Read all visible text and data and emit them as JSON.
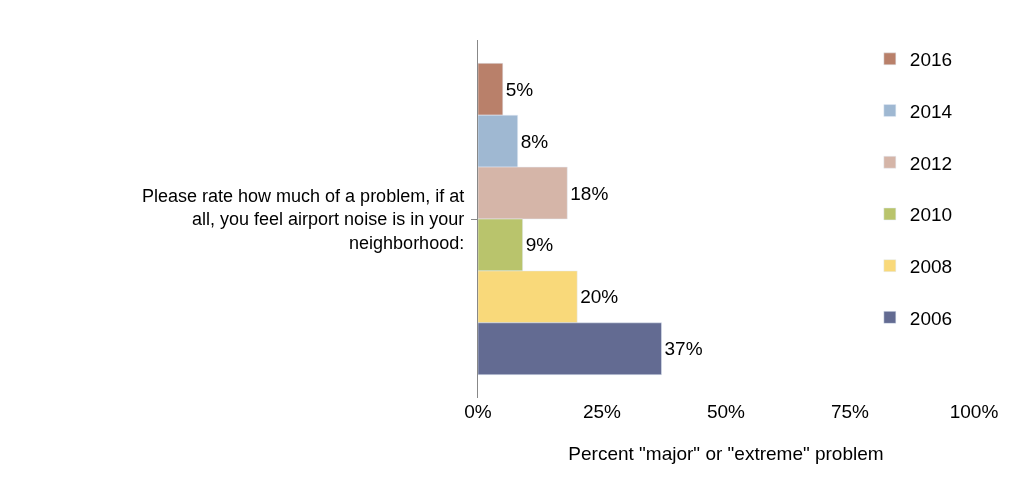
{
  "chart_data": {
    "type": "bar",
    "orientation": "horizontal",
    "xlabel": "Percent \"major\" or \"extreme\" problem",
    "ylabel": "Please rate how much of a problem, if at all, you feel airport noise is in your neighborhood:",
    "categories": [
      null
    ],
    "series": [
      {
        "name": "2016",
        "color": "#b9806a",
        "values": [
          5
        ],
        "value_labels": [
          "5%"
        ]
      },
      {
        "name": "2014",
        "color": "#9fb8d2",
        "values": [
          8
        ],
        "value_labels": [
          "8%"
        ]
      },
      {
        "name": "2012",
        "color": "#d5b5a8",
        "values": [
          18
        ],
        "value_labels": [
          "18%"
        ]
      },
      {
        "name": "2010",
        "color": "#b9c46c",
        "values": [
          9
        ],
        "value_labels": [
          "9%"
        ]
      },
      {
        "name": "2008",
        "color": "#f9d97a",
        "values": [
          20
        ],
        "value_labels": [
          "20%"
        ]
      },
      {
        "name": "2006",
        "color": "#636b92",
        "values": [
          37
        ],
        "value_labels": [
          "37%"
        ]
      }
    ],
    "xlim": [
      0,
      100
    ],
    "xticks": [
      {
        "value": 0,
        "label": "0%"
      },
      {
        "value": 25,
        "label": "25%"
      },
      {
        "value": 50,
        "label": "50%"
      },
      {
        "value": 75,
        "label": "75%"
      },
      {
        "value": 100,
        "label": "100%"
      }
    ],
    "legend": "right"
  }
}
